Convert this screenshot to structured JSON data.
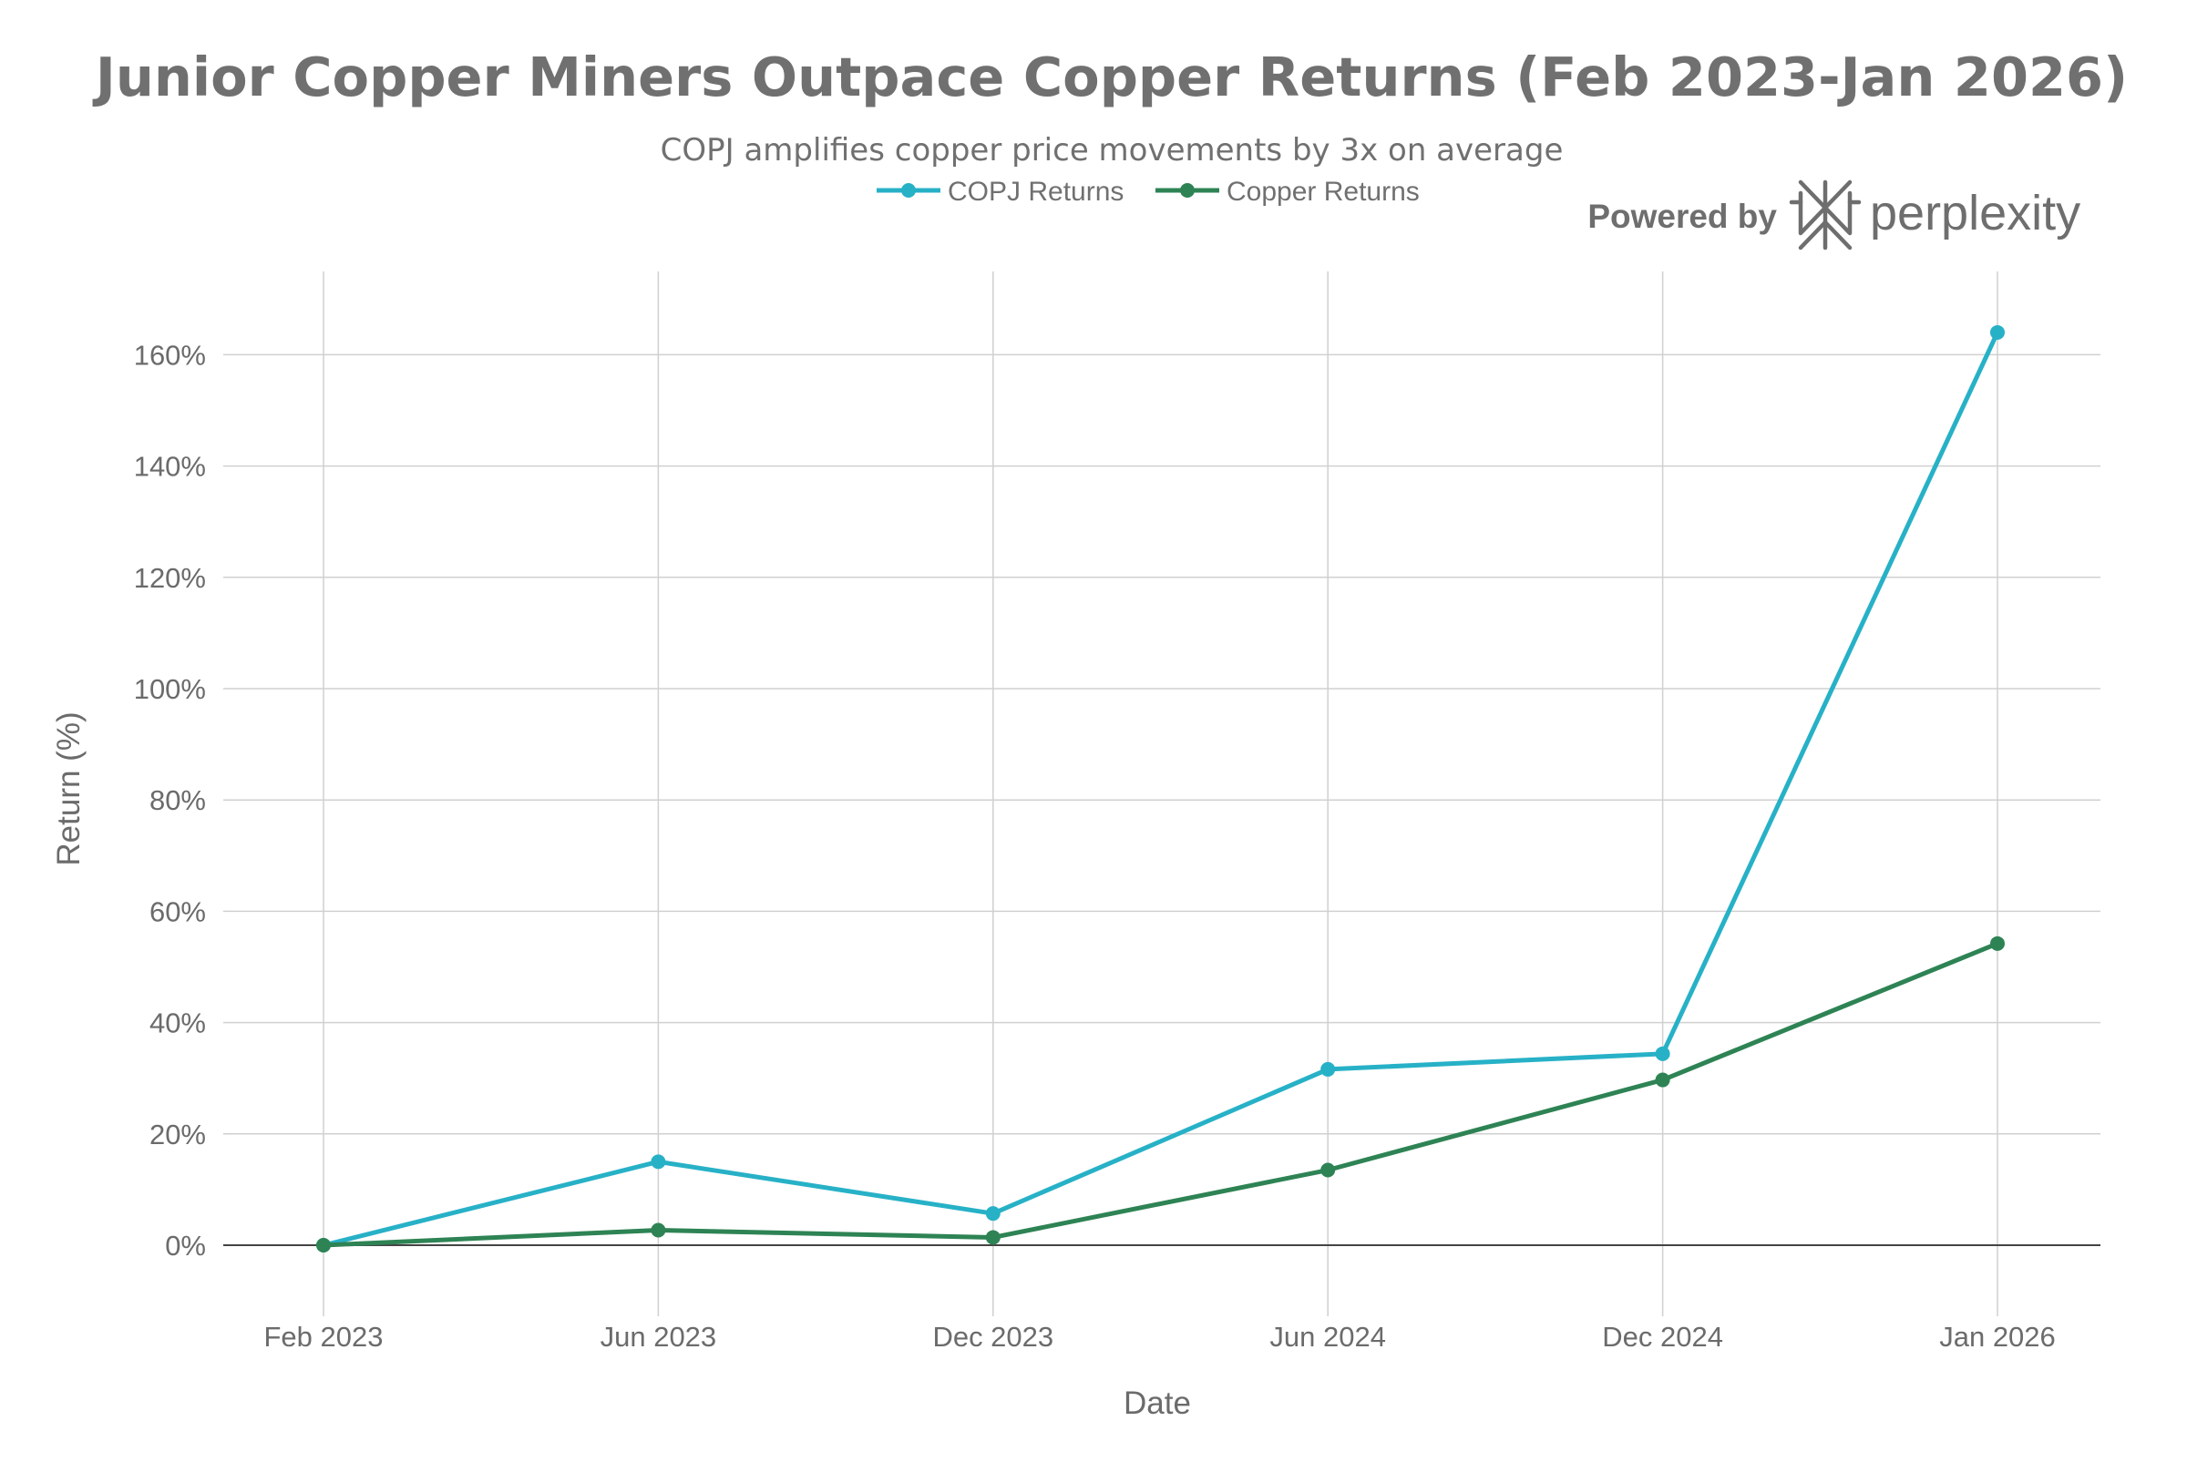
{
  "chart_data": {
    "type": "line",
    "title": "Junior Copper Miners Outpace Copper Returns (Feb 2023-Jan 2026)",
    "subtitle": "COPJ amplifies copper price movements by 3x on average",
    "xlabel": "Date",
    "ylabel": "Return (%)",
    "categories": [
      "Feb 2023",
      "Jun 2023",
      "Dec 2023",
      "Jun 2024",
      "Dec 2024",
      "Jan 2026"
    ],
    "series": [
      {
        "name": "COPJ Returns",
        "color": "#27b1c7",
        "values": [
          0,
          15,
          5.7,
          31.6,
          34.4,
          164
        ]
      },
      {
        "name": "Copper Returns",
        "color": "#2e8354",
        "values": [
          0,
          2.7,
          1.4,
          13.5,
          29.7,
          54.2
        ]
      }
    ],
    "ylim": [
      -12,
      175
    ],
    "yticks": [
      0,
      20,
      40,
      60,
      80,
      100,
      120,
      140,
      160
    ],
    "ytick_labels": [
      "0%",
      "20%",
      "40%",
      "60%",
      "80%",
      "100%",
      "120%",
      "140%",
      "160%"
    ],
    "grid": true,
    "legend_position": "top-center"
  },
  "branding": {
    "powered_by": "Powered by",
    "brand": "perplexity",
    "logo_icon": "perplexity-logo-icon"
  },
  "colors": {
    "grid": "#d0d0d0",
    "zero_line": "#444444",
    "text": "#6b6b6b"
  }
}
